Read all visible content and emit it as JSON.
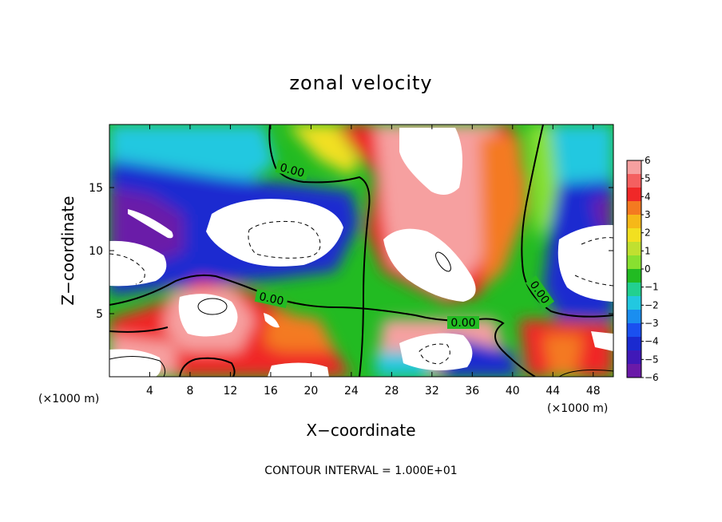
{
  "chart_data": {
    "type": "heatmap",
    "title": "zonal velocity",
    "xlabel": "X−coordinate",
    "ylabel": "Z−coordinate",
    "x_unit_left": "(×1000 m)",
    "x_unit_right": "(×1000 m)",
    "xlim": [
      0,
      50
    ],
    "ylim": [
      0,
      20
    ],
    "x_ticks": [
      4,
      8,
      12,
      16,
      20,
      24,
      28,
      32,
      36,
      40,
      44,
      48
    ],
    "y_ticks": [
      5,
      10,
      15
    ],
    "colorbar_labels": [
      "6",
      "5",
      "4",
      "3",
      "2",
      "1",
      "0",
      "−1",
      "−2",
      "−3",
      "−4",
      "−5",
      "−6"
    ],
    "colorbar_range": [
      -6,
      6
    ],
    "contour_labels": [
      "0.00",
      "0.00",
      "0.00",
      "0.00"
    ],
    "contour_note": "CONTOUR INTERVAL =  1.000E+01",
    "field_samples": [
      {
        "x": 8,
        "y": 18,
        "v": -3
      },
      {
        "x": 5,
        "y": 14,
        "v": -5
      },
      {
        "x": 14,
        "y": 16,
        "v": -4
      },
      {
        "x": 20,
        "y": 18,
        "v": -1
      },
      {
        "x": 24,
        "y": 18,
        "v": 3
      },
      {
        "x": 28,
        "y": 16,
        "v": 5
      },
      {
        "x": 34,
        "y": 18,
        "v": 6
      },
      {
        "x": 40,
        "y": 16,
        "v": 2
      },
      {
        "x": 44,
        "y": 18,
        "v": -2
      },
      {
        "x": 48,
        "y": 14,
        "v": -5
      },
      {
        "x": 24,
        "y": 10,
        "v": 0
      },
      {
        "x": 32,
        "y": 11,
        "v": 6
      },
      {
        "x": 10,
        "y": 6,
        "v": 6
      },
      {
        "x": 18,
        "y": 4,
        "v": 3
      },
      {
        "x": 26,
        "y": 3,
        "v": 0
      },
      {
        "x": 36,
        "y": 2,
        "v": -3
      },
      {
        "x": 44,
        "y": 3,
        "v": 3
      },
      {
        "x": 3,
        "y": 2,
        "v": 6
      }
    ]
  }
}
